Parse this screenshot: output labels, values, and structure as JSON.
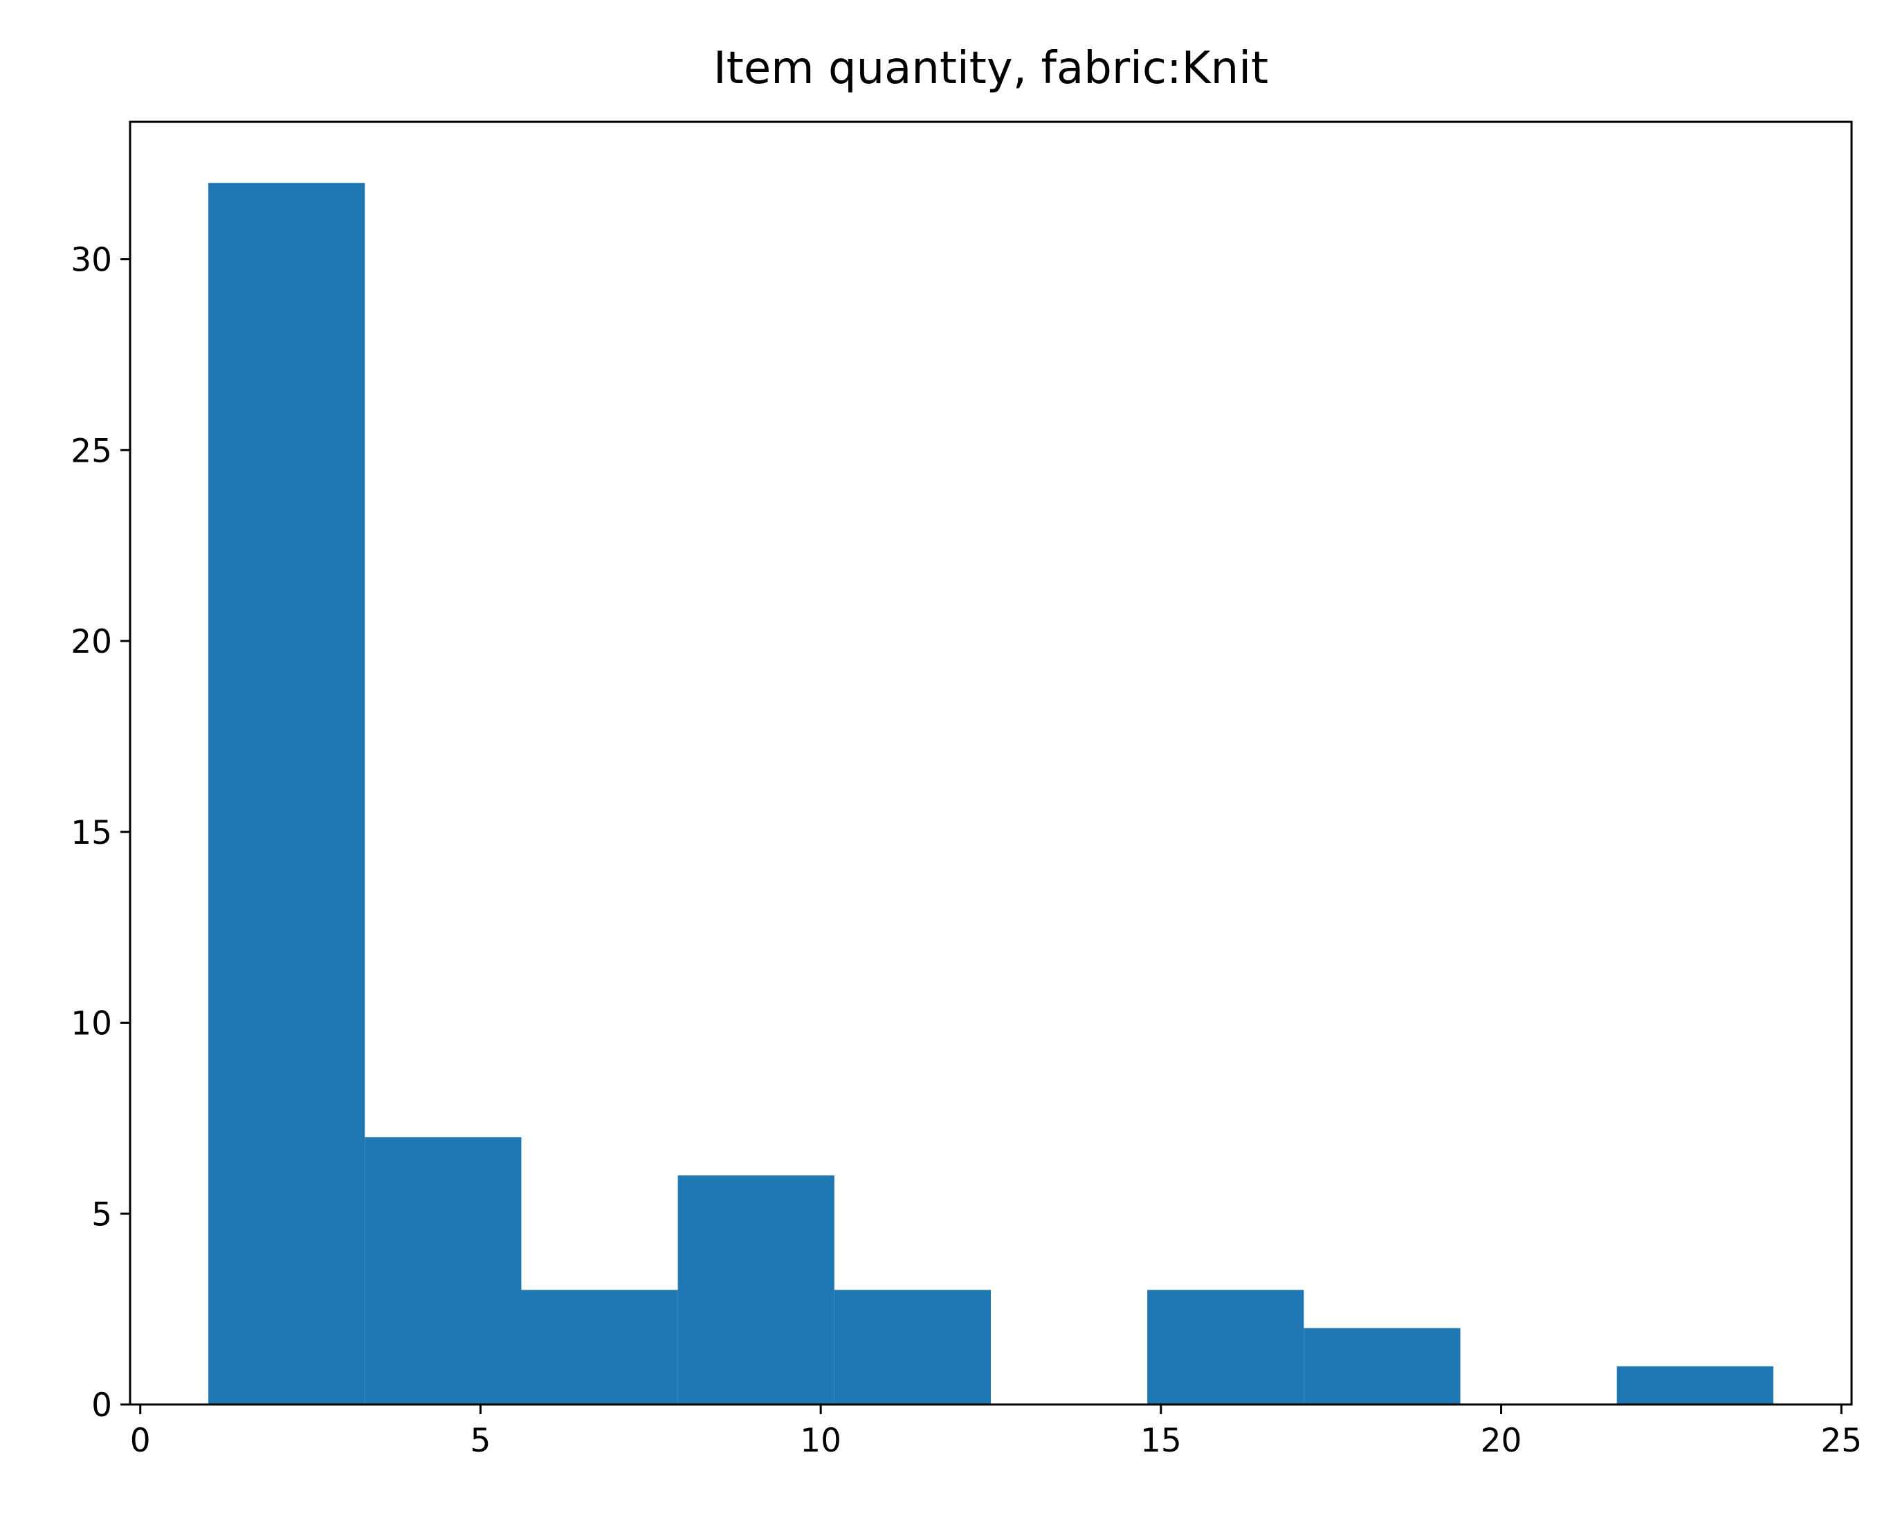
{
  "chart_data": {
    "type": "bar",
    "title": "Item quantity, fabric:Knit",
    "xlabel": "",
    "ylabel": "",
    "bins": [
      {
        "x0": 1.0,
        "x1": 3.3,
        "count": 32
      },
      {
        "x0": 3.3,
        "x1": 5.6,
        "count": 7
      },
      {
        "x0": 5.6,
        "x1": 7.9,
        "count": 3
      },
      {
        "x0": 7.9,
        "x1": 10.2,
        "count": 6
      },
      {
        "x0": 10.2,
        "x1": 12.5,
        "count": 3
      },
      {
        "x0": 12.5,
        "x1": 14.8,
        "count": 0
      },
      {
        "x0": 14.8,
        "x1": 17.1,
        "count": 3
      },
      {
        "x0": 17.1,
        "x1": 19.4,
        "count": 2
      },
      {
        "x0": 19.4,
        "x1": 21.7,
        "count": 0
      },
      {
        "x0": 21.7,
        "x1": 24.0,
        "count": 1
      }
    ],
    "xlim": [
      -0.15,
      25.15
    ],
    "ylim": [
      0,
      33.6
    ],
    "xticks": [
      0,
      5,
      10,
      15,
      20,
      25
    ],
    "yticks": [
      0,
      5,
      10,
      15,
      20,
      25,
      30
    ],
    "grid": false,
    "legend": "none",
    "bar_color": "#1f77b4"
  }
}
